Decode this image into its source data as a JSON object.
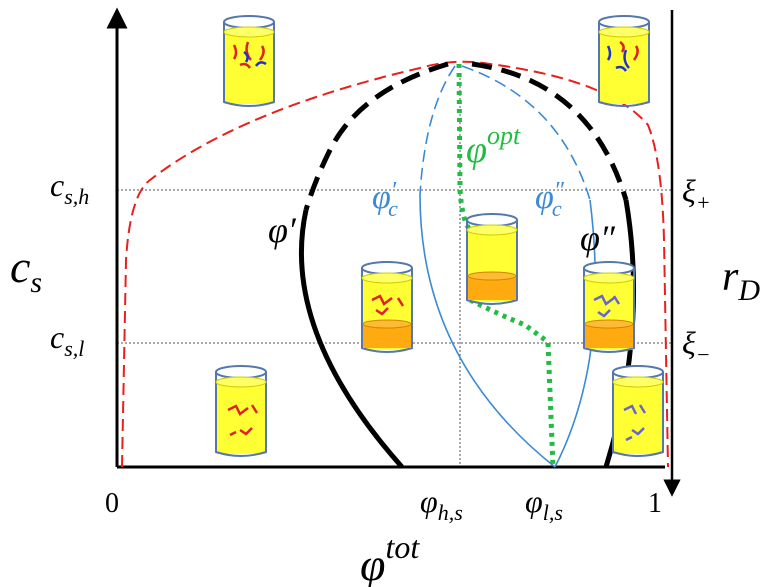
{
  "axes": {
    "y_label": {
      "base": "c",
      "sub": "s"
    },
    "x_label": {
      "base": "φ",
      "sup": "tot"
    },
    "right_label": {
      "base": "r",
      "sub": "D"
    }
  },
  "x_ticks": [
    {
      "text": "0"
    },
    {
      "base": "φ",
      "sub": "h,s"
    },
    {
      "base": "φ",
      "sub": "l,s"
    },
    {
      "text": "1"
    }
  ],
  "y_ticks": [
    {
      "base": "c",
      "sub": "s,h"
    },
    {
      "base": "c",
      "sub": "s,l"
    }
  ],
  "right_ticks": [
    {
      "base": "ξ",
      "sub": "+"
    },
    {
      "base": "ξ",
      "sub": "−"
    }
  ],
  "curve_labels": {
    "phi_prime": "φ′",
    "phi_double_prime": "φ″",
    "phi_c_prime": {
      "base": "φ",
      "sup": "′",
      "sub": "c"
    },
    "phi_c_double_prime": {
      "base": "φ",
      "sup": "″",
      "sub": "c"
    },
    "phi_opt": {
      "base": "φ",
      "sup": "opt"
    }
  }
}
